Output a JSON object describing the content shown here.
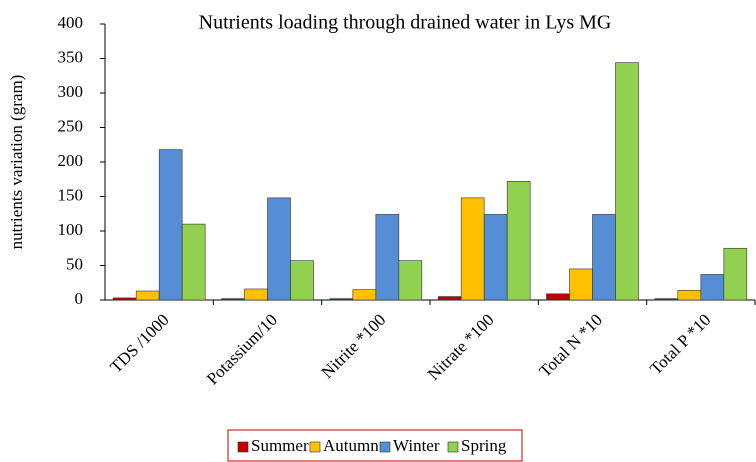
{
  "chart_data": {
    "type": "bar",
    "title": "Nutrients loading through drained water in Lys MG",
    "y_label": "nutrients variation (gram)",
    "categories": [
      "TDS /1000",
      "Potassium/10",
      "Nitrite *100",
      "Nitrate *100",
      "Total N *10",
      "Total P *10"
    ],
    "series": [
      {
        "name": "Summer",
        "color": "#c00000",
        "values": [
          3,
          2,
          2,
          5,
          9,
          2
        ]
      },
      {
        "name": "Autumn",
        "color": "#ffc000",
        "values": [
          13,
          16,
          15,
          148,
          45,
          14
        ]
      },
      {
        "name": "Winter",
        "color": "#558ed5",
        "values": [
          218,
          148,
          124,
          124,
          124,
          37
        ]
      },
      {
        "name": "Spring",
        "color": "#92d050",
        "values": [
          110,
          57,
          57,
          172,
          344,
          75
        ]
      }
    ],
    "ylim": [
      0,
      400
    ],
    "yticks": [
      0,
      50,
      100,
      150,
      200,
      250,
      300,
      350,
      400
    ],
    "grid": false,
    "legend": "bottom",
    "legend_border_color": "#c00000"
  }
}
